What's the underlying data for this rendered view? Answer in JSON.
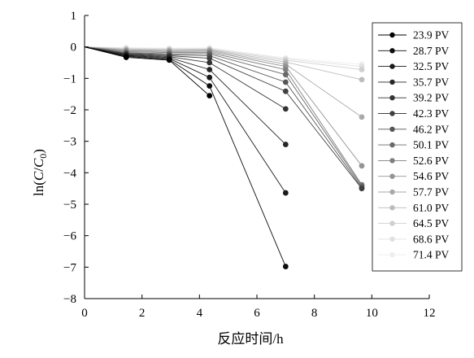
{
  "chart_data": {
    "type": "line",
    "title": "",
    "xlabel": "反应时间/h",
    "ylabel_parts": [
      "ln(",
      "C",
      "/",
      "C",
      "0",
      ")"
    ],
    "xlim": [
      0,
      12
    ],
    "ylim": [
      -8,
      1
    ],
    "xticks": [
      0,
      2,
      4,
      6,
      8,
      10,
      12
    ],
    "yticks": [
      1,
      0,
      -1,
      -2,
      -3,
      -4,
      -5,
      -6,
      -7,
      -8
    ],
    "grid": false,
    "legend_position": "right",
    "series": [
      {
        "name": "23.9 PV",
        "color": "#000000",
        "x": [
          0,
          1.45,
          2.95,
          4.35
        ],
        "y": [
          0,
          -0.33,
          -0.42,
          -1.55
        ]
      },
      {
        "name": "28.7 PV",
        "color": "#0d0d0d",
        "x": [
          0,
          1.45,
          2.95,
          4.35,
          7.0
        ],
        "y": [
          0,
          -0.3,
          -0.4,
          -1.24,
          -6.98
        ]
      },
      {
        "name": "32.5 PV",
        "color": "#1a1a1a",
        "x": [
          0,
          1.45,
          2.95,
          4.35,
          7.0
        ],
        "y": [
          0,
          -0.28,
          -0.37,
          -0.97,
          -4.64
        ]
      },
      {
        "name": "35.7 PV",
        "color": "#262626",
        "x": [
          0,
          1.45,
          2.95,
          4.35,
          7.0
        ],
        "y": [
          0,
          -0.26,
          -0.34,
          -0.72,
          -3.1
        ]
      },
      {
        "name": "39.2 PV",
        "color": "#333333",
        "x": [
          0,
          1.45,
          2.95,
          4.35,
          7.0
        ],
        "y": [
          0,
          -0.24,
          -0.31,
          -0.5,
          -1.97
        ]
      },
      {
        "name": "42.3 PV",
        "color": "#404040",
        "x": [
          0,
          1.45,
          2.95,
          4.35,
          7.0,
          9.65
        ],
        "y": [
          0,
          -0.22,
          -0.28,
          -0.36,
          -1.41,
          -4.5
        ]
      },
      {
        "name": "46.2 PV",
        "color": "#555555",
        "x": [
          0,
          1.45,
          2.95,
          4.35,
          7.0,
          9.65
        ],
        "y": [
          0,
          -0.2,
          -0.25,
          -0.28,
          -1.12,
          -4.47
        ]
      },
      {
        "name": "50.1 PV",
        "color": "#6a6a6a",
        "x": [
          0,
          1.45,
          2.95,
          4.35,
          7.0,
          9.65
        ],
        "y": [
          0,
          -0.18,
          -0.22,
          -0.22,
          -0.88,
          -4.42
        ]
      },
      {
        "name": "52.6 PV",
        "color": "#7f7f7f",
        "x": [
          0,
          1.45,
          2.95,
          4.35,
          7.0,
          9.65
        ],
        "y": [
          0,
          -0.15,
          -0.18,
          -0.18,
          -0.72,
          -4.38
        ]
      },
      {
        "name": "54.6 PV",
        "color": "#949494",
        "x": [
          0,
          1.45,
          2.95,
          4.35,
          7.0,
          9.65
        ],
        "y": [
          0,
          -0.12,
          -0.15,
          -0.14,
          -0.62,
          -3.78
        ]
      },
      {
        "name": "57.7 PV",
        "color": "#a9a9a9",
        "x": [
          0,
          1.45,
          2.95,
          4.35,
          7.0,
          9.65
        ],
        "y": [
          0,
          -0.1,
          -0.12,
          -0.11,
          -0.55,
          -2.23
        ]
      },
      {
        "name": "61.0 PV",
        "color": "#bcbcbc",
        "x": [
          0,
          1.45,
          2.95,
          4.35,
          7.0,
          9.65
        ],
        "y": [
          0,
          -0.08,
          -0.1,
          -0.09,
          -0.48,
          -1.04
        ]
      },
      {
        "name": "64.5 PV",
        "color": "#cfcfcf",
        "x": [
          0,
          1.45,
          2.95,
          4.35,
          7.0,
          9.65
        ],
        "y": [
          0,
          -0.06,
          -0.08,
          -0.07,
          -0.42,
          -0.72
        ]
      },
      {
        "name": "68.6 PV",
        "color": "#e0e0e0",
        "x": [
          0,
          1.45,
          2.95,
          4.35,
          7.0,
          9.65
        ],
        "y": [
          0,
          -0.04,
          -0.06,
          -0.05,
          -0.38,
          -0.62
        ]
      },
      {
        "name": "71.4 PV",
        "color": "#eeeeee",
        "x": [
          0,
          1.45,
          2.95,
          4.35,
          7.0,
          9.65
        ],
        "y": [
          0,
          -0.02,
          -0.04,
          -0.03,
          -0.35,
          -0.55
        ]
      }
    ]
  }
}
